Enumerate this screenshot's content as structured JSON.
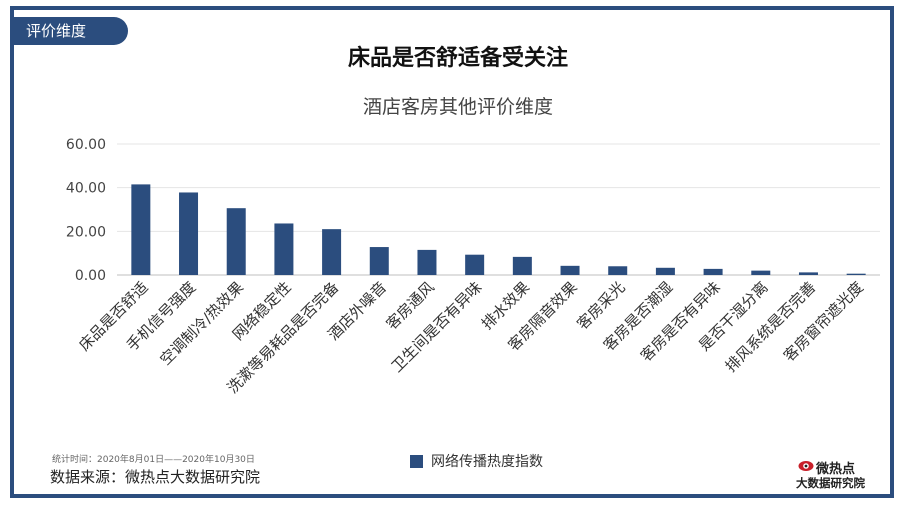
{
  "header": {
    "tag": "评价维度",
    "title": "床品是否舒适备受关注",
    "subtitle": "酒店客房其他评价维度"
  },
  "footer": {
    "period": "统计时间：2020年8月01日——2020年10月30日",
    "source": "数据来源：微热点大数据研究院",
    "logo_line1": "微热点",
    "logo_line2": "大数据研究院"
  },
  "colors": {
    "bar": "#2b4d7e",
    "frame": "#2b4d7e",
    "grid": "#e5e5e5"
  },
  "chart_data": {
    "type": "bar",
    "title": "酒店客房其他评价维度",
    "categories": [
      "床品是否舒适",
      "手机信号强度",
      "空调制冷/热效果",
      "网络稳定性",
      "洗漱等易耗品是否完备",
      "酒店外噪音",
      "客房通风",
      "卫生间是否有异味",
      "排水效果",
      "客房隔音效果",
      "客房采光",
      "客房是否潮湿",
      "客房是否有异味",
      "是否干湿分离",
      "排风系统是否完善",
      "客房窗帘遮光度"
    ],
    "series": [
      {
        "name": "网络传播热度指数",
        "values": [
          41.5,
          37.8,
          30.6,
          23.6,
          21.0,
          12.8,
          11.5,
          9.3,
          8.3,
          4.2,
          4.0,
          3.3,
          2.8,
          2.0,
          1.2,
          0.6
        ]
      }
    ],
    "ylim": [
      0,
      60
    ],
    "yticks": [
      "0.00",
      "20.00",
      "40.00",
      "60.00"
    ],
    "grid": true,
    "legend": "bottom-center"
  }
}
